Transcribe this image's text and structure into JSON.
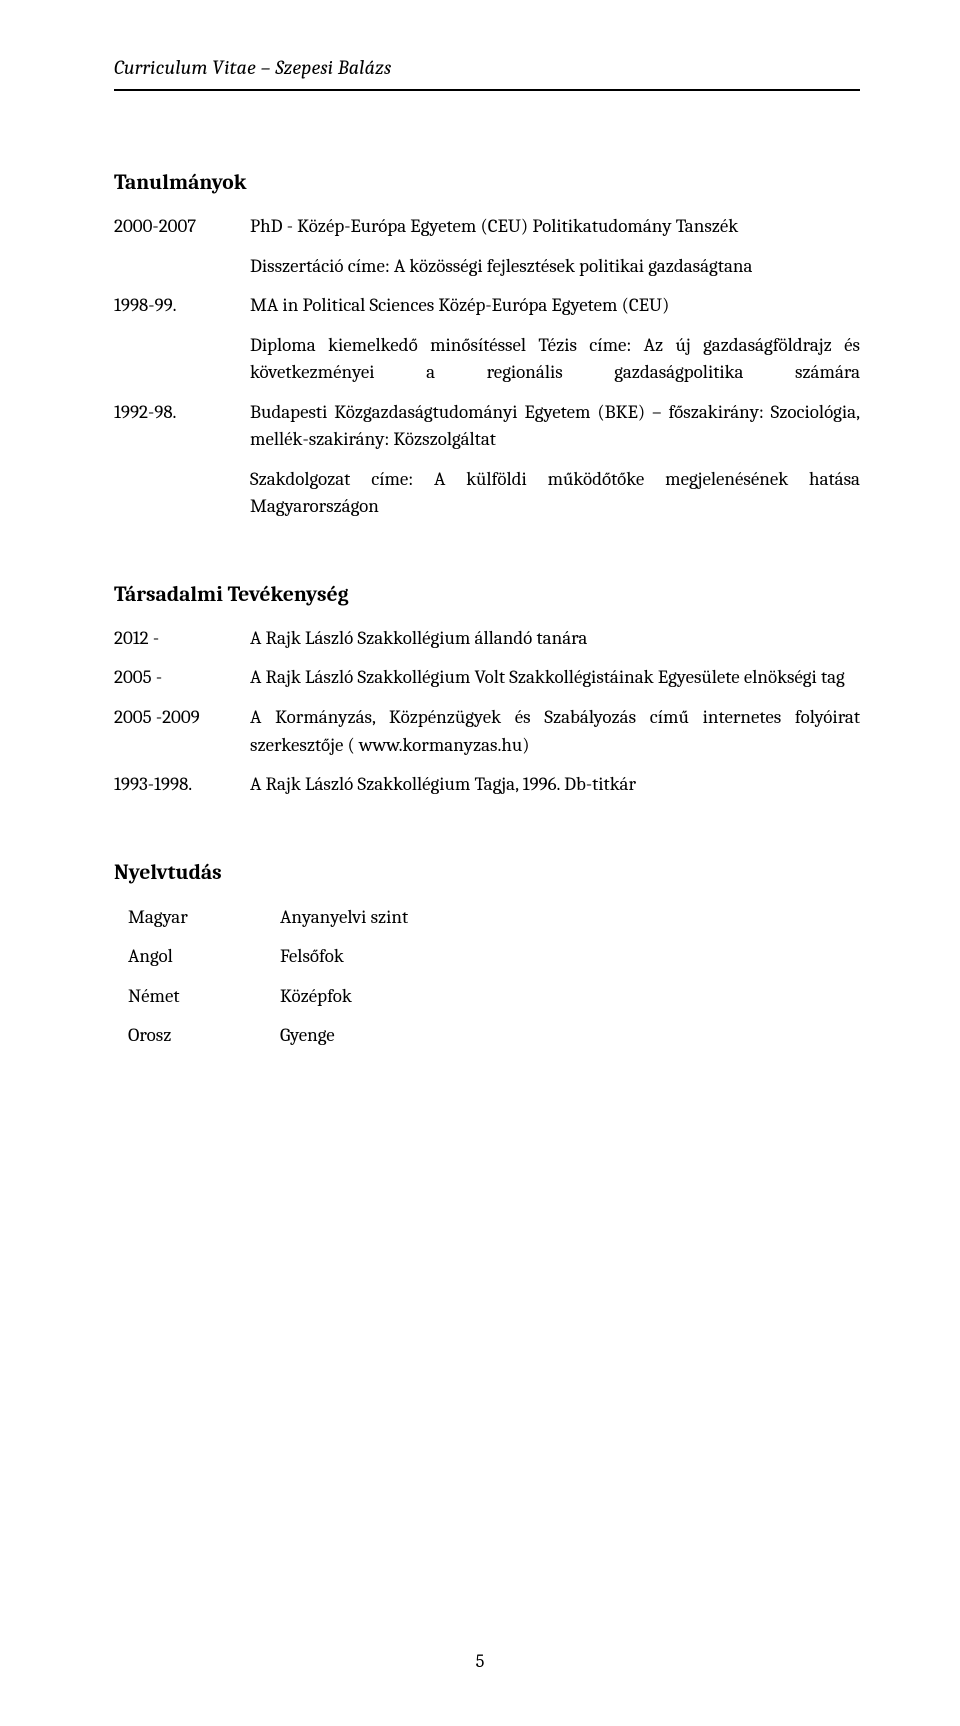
{
  "header": {
    "title": "Curriculum Vitae – Szepesi Balázs"
  },
  "education": {
    "title": "Tanulmányok",
    "items": [
      {
        "year": "2000-2007",
        "body": "PhD - Közép-Európa Egyetem (CEU) Politikatudomány Tanszék",
        "sub": "Disszertáció címe: A közösségi fejlesztések politikai gazdaságtana"
      },
      {
        "year": "1998-99.",
        "body": "MA in Political Sciences Közép-Európa Egyetem (CEU)",
        "sub": "Diploma kiemelkedő minősítéssel Tézis címe: Az új gazdaságföldrajz és következményei a regionális gazdaságpolitika számára"
      },
      {
        "year": "1992-98.",
        "body": "Budapesti Közgazdaságtudományi Egyetem (BKE) – főszakirány: Szociológia, mellék-szakirány: Közszolgáltat",
        "sub": "Szakdolgozat címe: A külföldi működőtőke megjelenésének hatása Magyarországon"
      }
    ]
  },
  "society": {
    "title": "Társadalmi Tevékenység",
    "items": [
      {
        "year": "2012 -",
        "body": "A Rajk László Szakkollégium állandó tanára"
      },
      {
        "year": "2005 -",
        "body": "A Rajk László Szakkollégium Volt Szakkollégistáinak Egyesülete elnökségi tag"
      },
      {
        "year": "2005 -2009",
        "body": "A Kormányzás, Közpénzügyek és Szabályozás című internetes folyóirat szerkesztője ( www.kormanyzas.hu)"
      },
      {
        "year": "1993-1998.",
        "body": "A Rajk László Szakkollégium Tagja, 1996. Db-titkár"
      }
    ]
  },
  "languages": {
    "title": "Nyelvtudás",
    "items": [
      {
        "key": "Magyar",
        "val": "Anyanyelvi szint"
      },
      {
        "key": "Angol",
        "val": "Felsőfok"
      },
      {
        "key": "Német",
        "val": "Középfok"
      },
      {
        "key": "Orosz",
        "val": "Gyenge"
      }
    ]
  },
  "page_number": "5"
}
